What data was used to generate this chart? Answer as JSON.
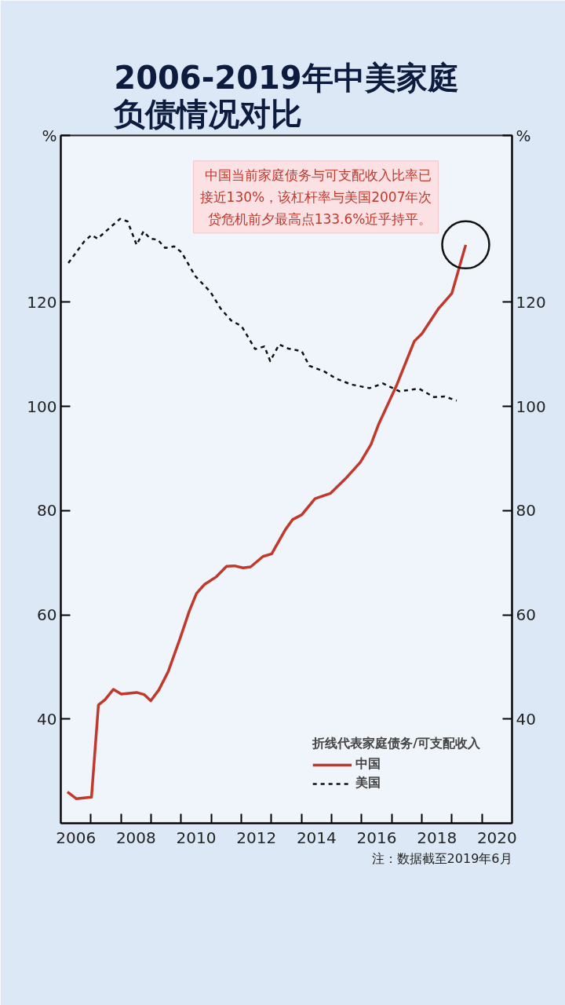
{
  "chart_data": {
    "type": "line",
    "title": "2006-2019年中美家庭负债情况对比",
    "ylabel": "%",
    "y2label": "%",
    "legend_title": "折线代表家庭债务/可支配收入",
    "legend": "bottom right",
    "grid": false,
    "xlim": [
      2006,
      2021
    ],
    "xticks": [
      {
        "value": 2006.5,
        "label": "2006"
      },
      {
        "value": 2007,
        "label": null
      },
      {
        "value": 2008,
        "label": null
      },
      {
        "value": 2008.5,
        "label": "2008"
      },
      {
        "value": 2009,
        "label": null
      },
      {
        "value": 2010,
        "label": null
      },
      {
        "value": 2010.5,
        "label": "2010"
      },
      {
        "value": 2011,
        "label": null
      },
      {
        "value": 2012,
        "label": null
      },
      {
        "value": 2012.5,
        "label": "2012"
      },
      {
        "value": 2013,
        "label": null
      },
      {
        "value": 2014,
        "label": null
      },
      {
        "value": 2014.5,
        "label": "2014"
      },
      {
        "value": 2015,
        "label": null
      },
      {
        "value": 2016,
        "label": null
      },
      {
        "value": 2016.5,
        "label": "2016"
      },
      {
        "value": 2017,
        "label": null
      },
      {
        "value": 2018,
        "label": null
      },
      {
        "value": 2018.5,
        "label": "2018"
      },
      {
        "value": 2019,
        "label": null
      },
      {
        "value": 2020,
        "label": null
      },
      {
        "value": 2020.5,
        "label": "2020"
      }
    ],
    "ylim": [
      20,
      152
    ],
    "yticks": [
      40,
      60,
      80,
      100,
      120
    ],
    "y2lim": [
      20,
      152
    ],
    "y2ticks": [
      40,
      60,
      80,
      100,
      120
    ],
    "series": [
      {
        "name": "中国",
        "color": "#c0392b",
        "line_style": "solid",
        "x": [
          2006.22,
          2006.52,
          2007.02,
          2007.25,
          2007.47,
          2007.75,
          2008.01,
          2008.52,
          2008.77,
          2008.99,
          2009.26,
          2009.57,
          2009.96,
          2010.27,
          2010.51,
          2010.77,
          2011.17,
          2011.51,
          2011.77,
          2012.06,
          2012.31,
          2012.72,
          2013.01,
          2013.46,
          2013.71,
          2014.01,
          2014.45,
          2014.96,
          2015.46,
          2015.96,
          2016.31,
          2016.56,
          2017.16,
          2017.75,
          2018.01,
          2018.56,
          2019.0,
          2019.46
        ],
        "values": [
          26.0,
          24.7,
          25.0,
          42.7,
          43.7,
          45.7,
          44.8,
          45.1,
          44.7,
          43.5,
          45.6,
          49.1,
          55.4,
          60.7,
          64.1,
          65.8,
          67.3,
          69.3,
          69.4,
          69.0,
          69.2,
          71.2,
          71.7,
          76.3,
          78.3,
          79.2,
          82.3,
          83.3,
          86.1,
          89.3,
          92.7,
          96.5,
          104.0,
          112.5,
          114.0,
          118.8,
          121.7,
          131.0
        ]
      },
      {
        "name": "美国",
        "color": "#111111",
        "line_style": "dashed",
        "x": [
          2006.25,
          2006.77,
          2007.02,
          2007.22,
          2007.97,
          2008.22,
          2008.52,
          2008.75,
          2008.97,
          2009.22,
          2009.47,
          2009.77,
          2010.01,
          2010.47,
          2010.97,
          2011.31,
          2011.66,
          2012.01,
          2012.46,
          2012.77,
          2012.96,
          2013.26,
          2013.56,
          2014.01,
          2014.26,
          2014.76,
          2015.16,
          2015.66,
          2016.26,
          2016.71,
          2017.26,
          2017.91,
          2018.4,
          2018.76,
          2019.16
        ],
        "values": [
          127.5,
          131.6,
          132.9,
          132.2,
          136.0,
          135.5,
          131.0,
          133.6,
          132.2,
          132.0,
          130.4,
          130.7,
          129.6,
          125.0,
          122.0,
          118.8,
          116.5,
          115.4,
          111.0,
          111.5,
          108.7,
          111.9,
          111.1,
          110.6,
          107.8,
          106.7,
          105.3,
          104.2,
          103.5,
          104.4,
          102.9,
          103.4,
          101.8,
          101.9,
          101.1
        ]
      }
    ],
    "annotations": [
      {
        "text": "中国当前家庭债务与可支配收入比率已接近130%，该杠杆率与美国2007年次贷危机前夕最高点133.6%近乎持平。",
        "x": 2019.46,
        "y": 131.0
      },
      "注：数据截至2019年6月"
    ]
  }
}
